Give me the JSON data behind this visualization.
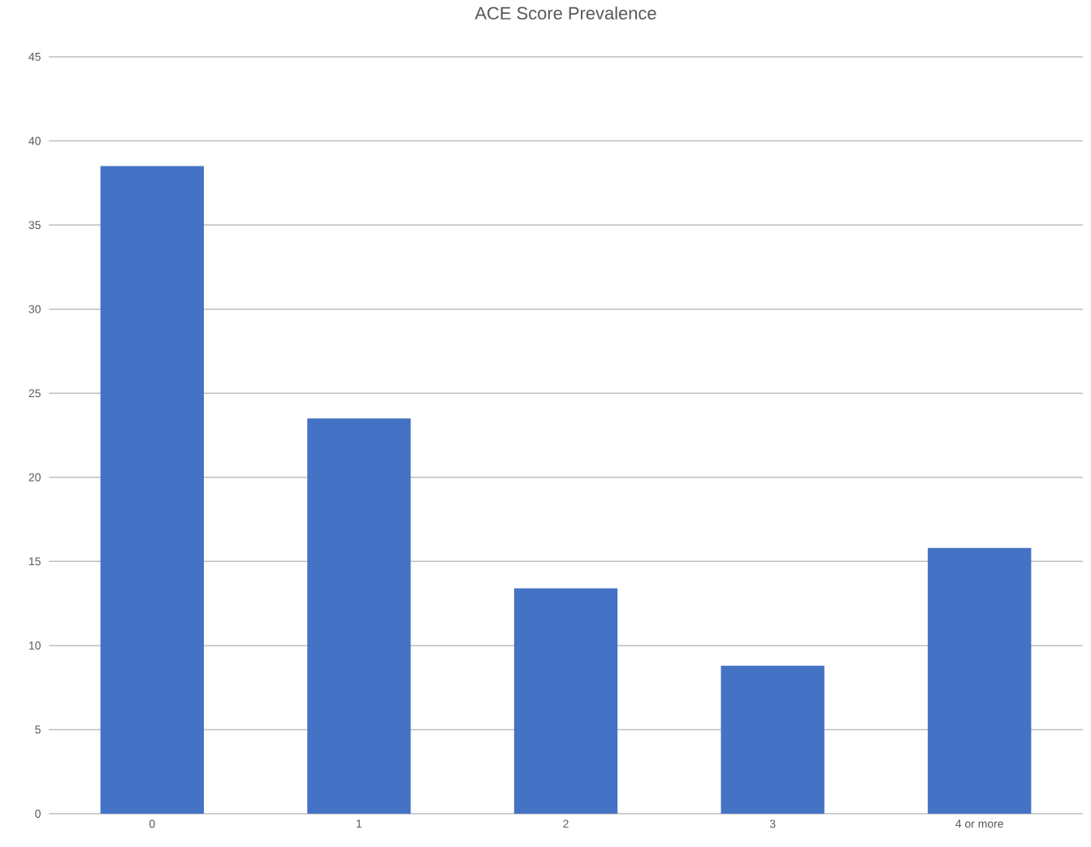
{
  "chart_data": {
    "type": "bar",
    "title": "ACE Score Prevalence",
    "categories": [
      "0",
      "1",
      "2",
      "3",
      "4 or more"
    ],
    "values": [
      38.5,
      23.5,
      13.4,
      8.8,
      15.8
    ],
    "color": "#4472c4",
    "ylim": [
      0,
      45
    ],
    "yticks": [
      0,
      5,
      10,
      15,
      20,
      25,
      30,
      35,
      40,
      45
    ],
    "grid": "y"
  }
}
